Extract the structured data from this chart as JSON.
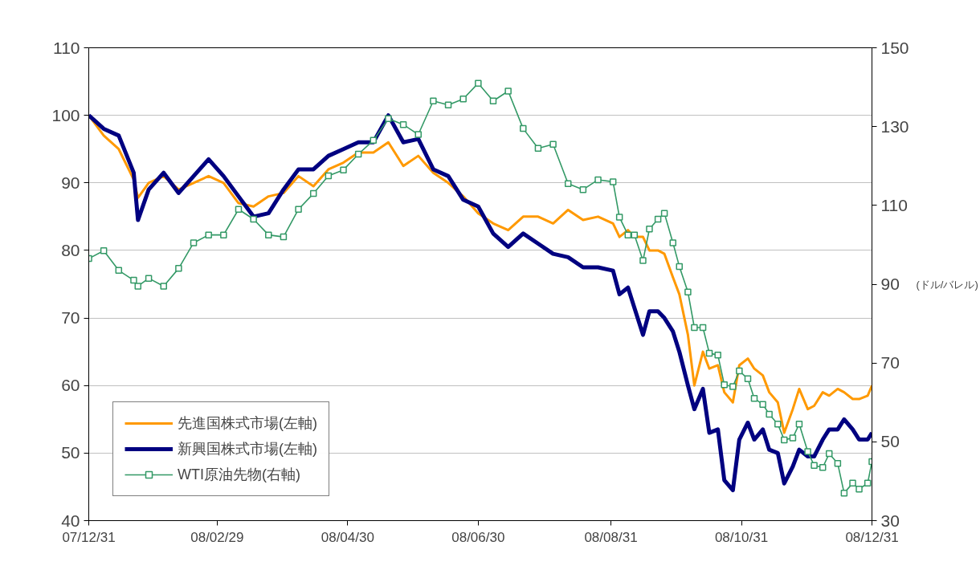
{
  "chart_data": {
    "type": "line",
    "y2label": "(ドル/バレル)",
    "x": [
      "2007-12-31",
      "2008-01-07",
      "2008-01-14",
      "2008-01-21",
      "2008-01-23",
      "2008-01-28",
      "2008-02-04",
      "2008-02-11",
      "2008-02-18",
      "2008-02-25",
      "2008-03-03",
      "2008-03-10",
      "2008-03-17",
      "2008-03-24",
      "2008-03-31",
      "2008-04-07",
      "2008-04-14",
      "2008-04-21",
      "2008-04-28",
      "2008-05-05",
      "2008-05-12",
      "2008-05-19",
      "2008-05-26",
      "2008-06-02",
      "2008-06-09",
      "2008-06-16",
      "2008-06-23",
      "2008-06-30",
      "2008-07-07",
      "2008-07-14",
      "2008-07-21",
      "2008-07-28",
      "2008-08-04",
      "2008-08-11",
      "2008-08-18",
      "2008-08-25",
      "2008-09-01",
      "2008-09-04",
      "2008-09-08",
      "2008-09-11",
      "2008-09-15",
      "2008-09-18",
      "2008-09-22",
      "2008-09-25",
      "2008-09-29",
      "2008-10-02",
      "2008-10-06",
      "2008-10-09",
      "2008-10-13",
      "2008-10-16",
      "2008-10-20",
      "2008-10-23",
      "2008-10-27",
      "2008-10-30",
      "2008-11-03",
      "2008-11-06",
      "2008-11-10",
      "2008-11-13",
      "2008-11-17",
      "2008-11-20",
      "2008-11-24",
      "2008-11-27",
      "2008-12-01",
      "2008-12-04",
      "2008-12-08",
      "2008-12-11",
      "2008-12-15",
      "2008-12-18",
      "2008-12-22",
      "2008-12-25",
      "2008-12-29",
      "2008-12-31"
    ],
    "series": [
      {
        "name": "先進国株式市場(左軸)",
        "color": "#ff9900",
        "marker": "none",
        "values": [
          100,
          97,
          95,
          90.5,
          87.8,
          90,
          91,
          89,
          90,
          91,
          90,
          87,
          86.5,
          88,
          88.5,
          91,
          89.5,
          92,
          93,
          94.5,
          94.5,
          96,
          92.5,
          94,
          91.5,
          90,
          88,
          85.5,
          84,
          83,
          85,
          85,
          84,
          86,
          84.5,
          85,
          84,
          82,
          83,
          82,
          82,
          80,
          80,
          79.5,
          76,
          73.5,
          67.5,
          60,
          65,
          62.5,
          63,
          59,
          57.5,
          63,
          64,
          62.5,
          61.5,
          59,
          57.5,
          53,
          56.5,
          59.5,
          56.5,
          57,
          59,
          58.5,
          59.5,
          59,
          58,
          58,
          58.5,
          60
        ]
      },
      {
        "name": "新興国株式市場(左軸)",
        "color": "#000080",
        "marker": "none",
        "values": [
          100,
          98,
          97,
          91.5,
          84.5,
          89,
          91.5,
          88.5,
          91,
          93.5,
          91,
          88,
          85,
          85.5,
          89,
          92,
          92,
          94,
          95,
          96,
          96,
          100,
          96,
          96.5,
          92,
          91,
          87.5,
          86.5,
          82.5,
          80.5,
          82.5,
          81,
          79.5,
          79,
          77.5,
          77.5,
          77,
          73.5,
          74.5,
          71.5,
          67.5,
          71,
          71,
          70,
          68,
          65,
          60,
          56.5,
          59.5,
          53,
          53.5,
          46,
          44.5,
          52,
          54.5,
          52,
          53.5,
          50.5,
          50,
          45.5,
          48,
          50.5,
          49.5,
          49.5,
          52,
          53.5,
          53.5,
          55,
          53.5,
          52,
          52,
          53
        ]
      },
      {
        "name": "WTI原油先物(右軸)",
        "color": "#339966",
        "marker": "square",
        "axis": "y2",
        "values": [
          96.5,
          98.5,
          93.5,
          91,
          89.5,
          91.5,
          89.5,
          94,
          100.5,
          102.5,
          102.5,
          109,
          106.5,
          102.5,
          102,
          109,
          113,
          117.5,
          119,
          123,
          126.5,
          132,
          130.5,
          128,
          136.5,
          135.5,
          137,
          141,
          136.5,
          139,
          129.5,
          124.5,
          125.5,
          115.5,
          114,
          116.5,
          116,
          107,
          102.5,
          102.5,
          96,
          104,
          106.5,
          108,
          100.5,
          94.5,
          88,
          79,
          79,
          72.5,
          72,
          64.5,
          64,
          68,
          66,
          61,
          59.5,
          57,
          54.5,
          50.5,
          51,
          54.5,
          47.5,
          44,
          43.5,
          47,
          44.5,
          37,
          39.5,
          38,
          39.5,
          45
        ]
      }
    ],
    "xlim": [
      "2007-12-31",
      "2008-12-31"
    ],
    "xticks": [
      {
        "value": "2007-12-31",
        "label": "07/12/31"
      },
      {
        "value": "2008-02-29",
        "label": "08/02/29"
      },
      {
        "value": "2008-04-30",
        "label": "08/04/30"
      },
      {
        "value": "2008-06-30",
        "label": "08/06/30"
      },
      {
        "value": "2008-08-31",
        "label": "08/08/31"
      },
      {
        "value": "2008-10-31",
        "label": "08/10/31"
      },
      {
        "value": "2008-12-31",
        "label": "08/12/31"
      }
    ],
    "ylim": [
      40,
      110
    ],
    "yticks": [
      40,
      50,
      60,
      70,
      80,
      90,
      100,
      110
    ],
    "y2lim": [
      30,
      150
    ],
    "y2ticks": [
      30,
      50,
      70,
      90,
      110,
      130,
      150
    ],
    "grid": "y",
    "legend": "bottom left"
  }
}
